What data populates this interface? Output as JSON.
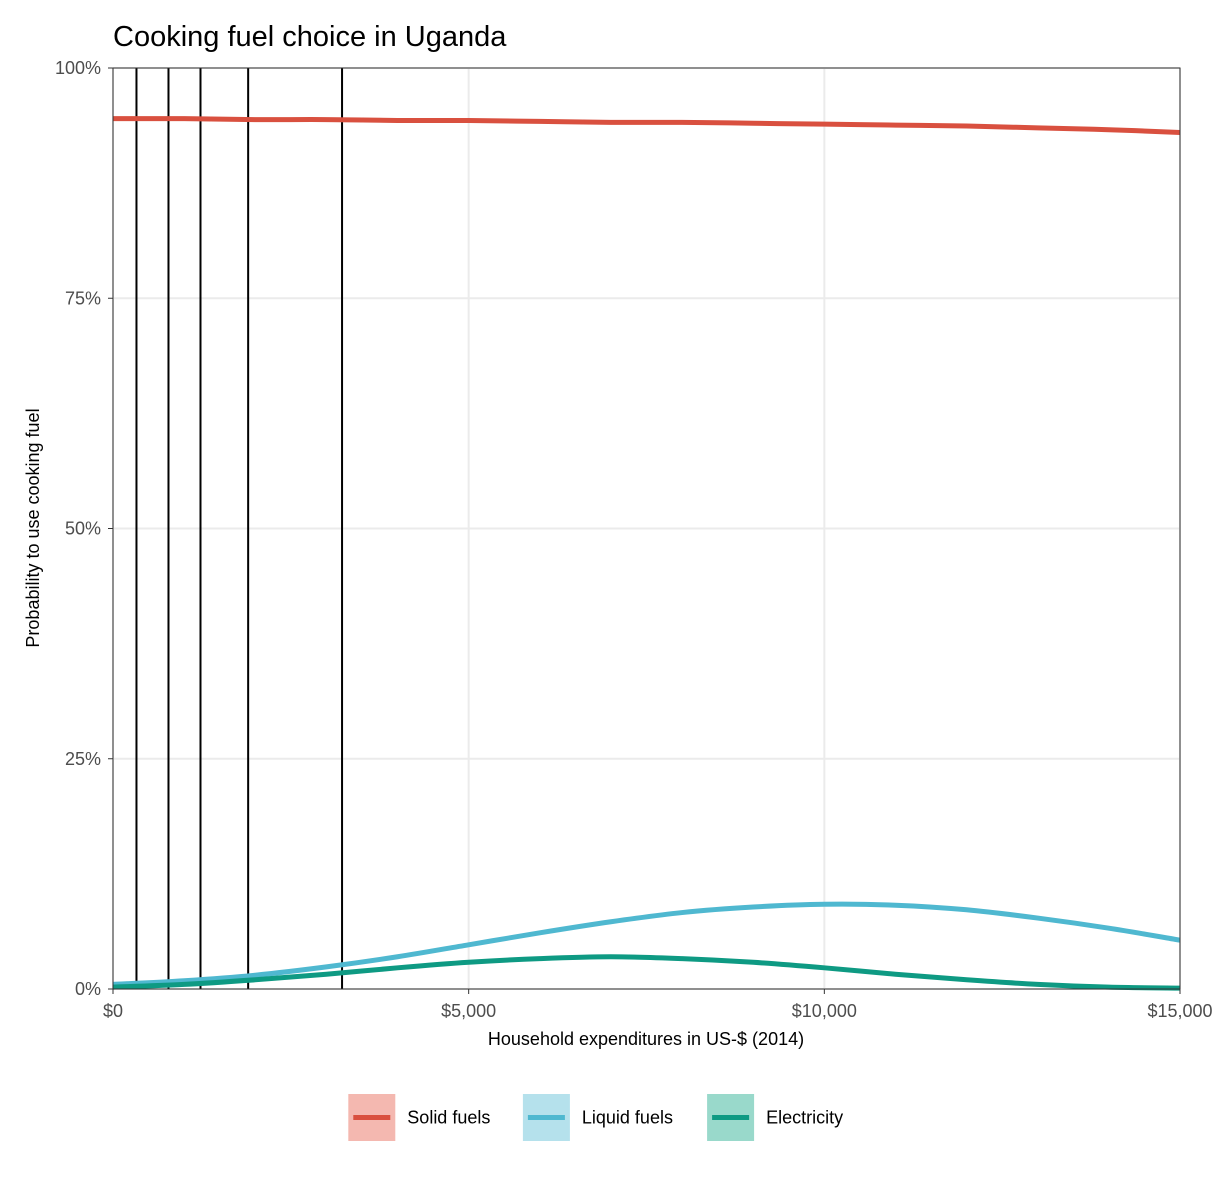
{
  "chart_data": {
    "type": "line",
    "title": "Cooking fuel choice in Uganda",
    "xlabel": "Household expenditures in US-$ (2014)",
    "ylabel": "Probability to use cooking fuel",
    "xlim": [
      0,
      15000
    ],
    "ylim": [
      0,
      100
    ],
    "x_ticks": [
      0,
      5000,
      10000,
      15000
    ],
    "x_tick_labels": [
      "$0",
      "$5,000",
      "$10,000",
      "$15,000"
    ],
    "y_ticks": [
      0,
      25,
      50,
      75,
      100
    ],
    "y_tick_labels": [
      "0%",
      "25%",
      "50%",
      "75%",
      "100%"
    ],
    "grid": true,
    "legend_position": "bottom",
    "vertical_lines": [
      330,
      780,
      1230,
      1900,
      3220
    ],
    "series": [
      {
        "name": "Solid fuels",
        "color": "#d9503f",
        "legend_fill": "#f4b8b0",
        "x": [
          0,
          1000,
          2000,
          3000,
          4000,
          5000,
          6000,
          7000,
          8000,
          9000,
          10000,
          11000,
          12000,
          13000,
          14000,
          15000
        ],
        "y": [
          94.5,
          94.5,
          94.4,
          94.4,
          94.3,
          94.3,
          94.2,
          94.1,
          94.1,
          94.0,
          93.9,
          93.8,
          93.7,
          93.5,
          93.3,
          93.0
        ]
      },
      {
        "name": "Liquid fuels",
        "color": "#4fb8d0",
        "legend_fill": "#b5e1ec",
        "x": [
          0,
          1000,
          2000,
          3000,
          4000,
          5000,
          6000,
          7000,
          8000,
          9000,
          10000,
          11000,
          12000,
          13000,
          14000,
          15000
        ],
        "y": [
          0.5,
          0.9,
          1.5,
          2.4,
          3.5,
          4.8,
          6.1,
          7.3,
          8.3,
          8.9,
          9.2,
          9.1,
          8.6,
          7.7,
          6.6,
          5.3
        ]
      },
      {
        "name": "Electricity",
        "color": "#0e9a83",
        "legend_fill": "#99d9cb",
        "x": [
          0,
          1000,
          2000,
          3000,
          4000,
          5000,
          6000,
          7000,
          8000,
          9000,
          10000,
          11000,
          12000,
          13000,
          14000,
          15000
        ],
        "y": [
          0.2,
          0.5,
          1.0,
          1.6,
          2.3,
          2.9,
          3.3,
          3.5,
          3.3,
          2.9,
          2.3,
          1.6,
          1.0,
          0.5,
          0.2,
          0.1
        ]
      }
    ]
  }
}
